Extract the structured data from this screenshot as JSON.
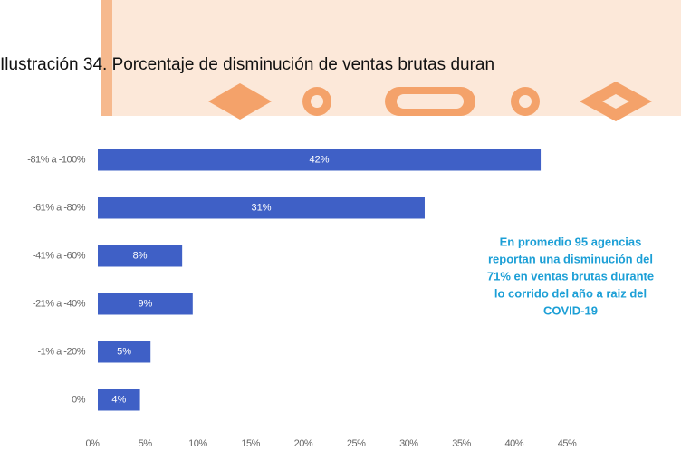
{
  "chart_data": {
    "type": "bar",
    "orientation": "horizontal",
    "title": "Ilustración 34. Porcentaje de disminución de ventas brutas duran",
    "categories": [
      "-81% a -100%",
      "-61% a -80%",
      "-41% a -60%",
      "-21% a -40%",
      "-1% a -20%",
      "0%"
    ],
    "values": [
      42,
      31,
      8,
      9,
      5,
      4
    ],
    "value_labels": [
      "42%",
      "31%",
      "8%",
      "9%",
      "5%",
      "4%"
    ],
    "color": "#3f60c6",
    "xlim": [
      0,
      45
    ],
    "xticks": [
      {
        "value": 0,
        "label": "0%"
      },
      {
        "value": 5,
        "label": "5%"
      },
      {
        "value": 10,
        "label": "10%"
      },
      {
        "value": 15,
        "label": "15%"
      },
      {
        "value": 20,
        "label": "20%"
      },
      {
        "value": 25,
        "label": "25%"
      },
      {
        "value": 30,
        "label": "30%"
      },
      {
        "value": 35,
        "label": "35%"
      },
      {
        "value": 40,
        "label": "40%"
      },
      {
        "value": 45,
        "label": "45%"
      }
    ],
    "grid": false,
    "annotation": [
      "En promedio 95 agencias",
      "reportan una disminución del",
      "71% en ventas brutas durante",
      "lo corrido del año a raiz del",
      "COVID-19"
    ]
  }
}
